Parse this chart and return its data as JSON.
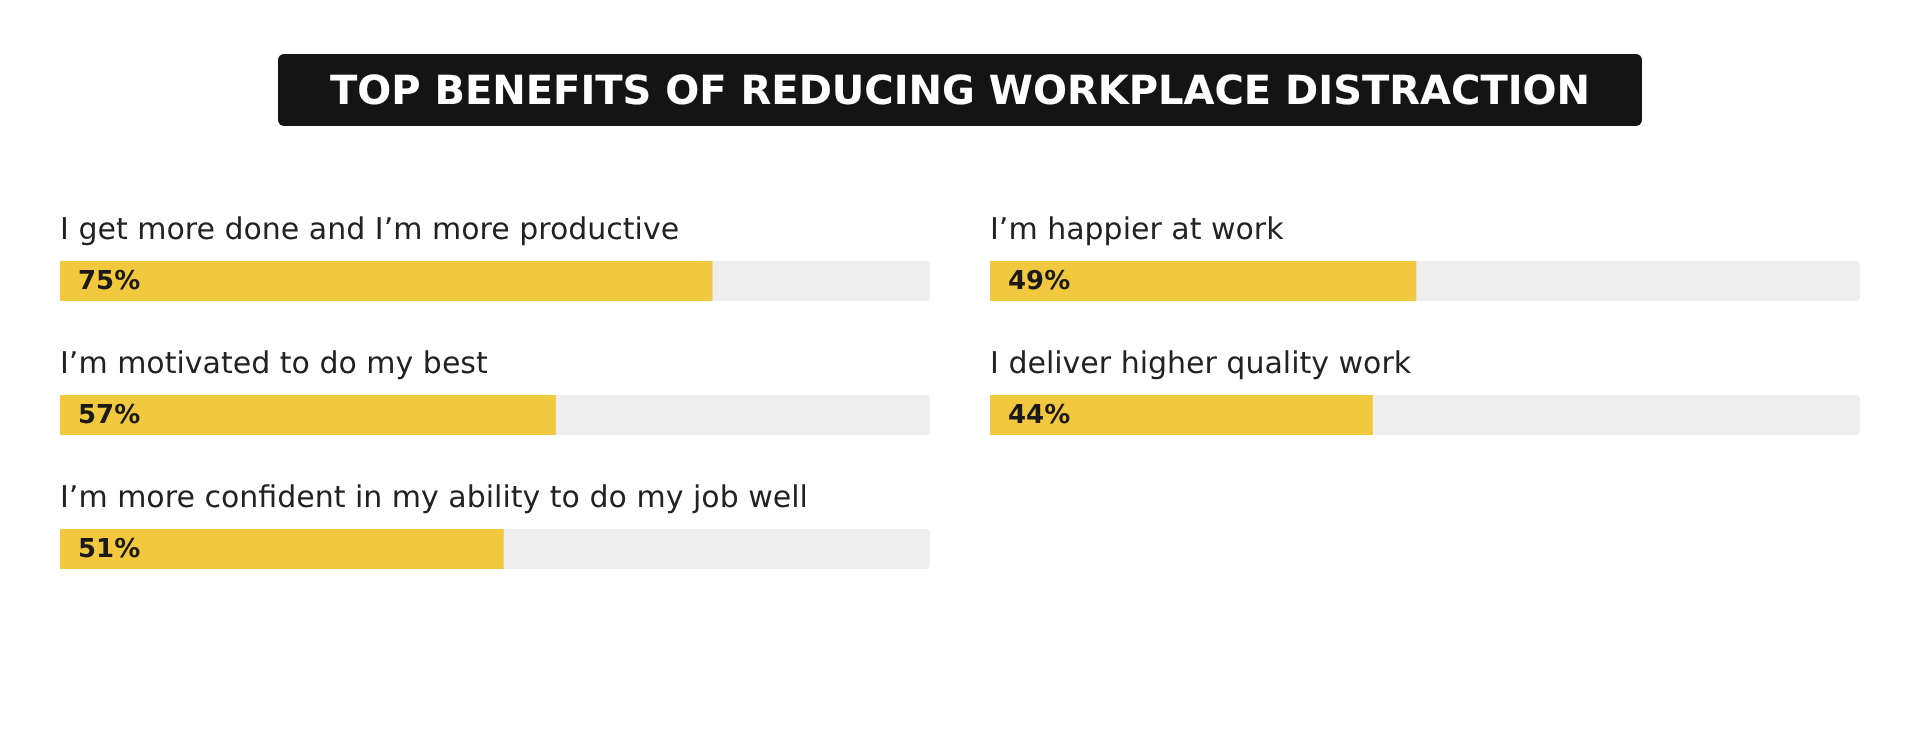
{
  "chart_data": [
    {
      "type": "bar",
      "orientation": "horizontal",
      "title": "TOP BENEFITS OF REDUCING WORKPLACE DISTRACTION",
      "categories": [
        "I get more done and I’m more productive",
        "I’m motivated to do my best",
        "I’m more confident in my ability to do my job well"
      ],
      "values": [
        75,
        57,
        51
      ],
      "value_labels": [
        "75%",
        "57%",
        "51%"
      ],
      "color": "#f2c83e",
      "xlim": [
        0,
        100
      ],
      "tick_labels": false
    },
    {
      "type": "bar",
      "orientation": "horizontal",
      "categories": [
        "I’m happier at work",
        "I deliver higher quality work"
      ],
      "values": [
        49,
        44
      ],
      "value_labels": [
        "49%",
        "44%"
      ],
      "color": "#f2c83e",
      "xlim": [
        0,
        100
      ],
      "tick_labels": false
    }
  ]
}
